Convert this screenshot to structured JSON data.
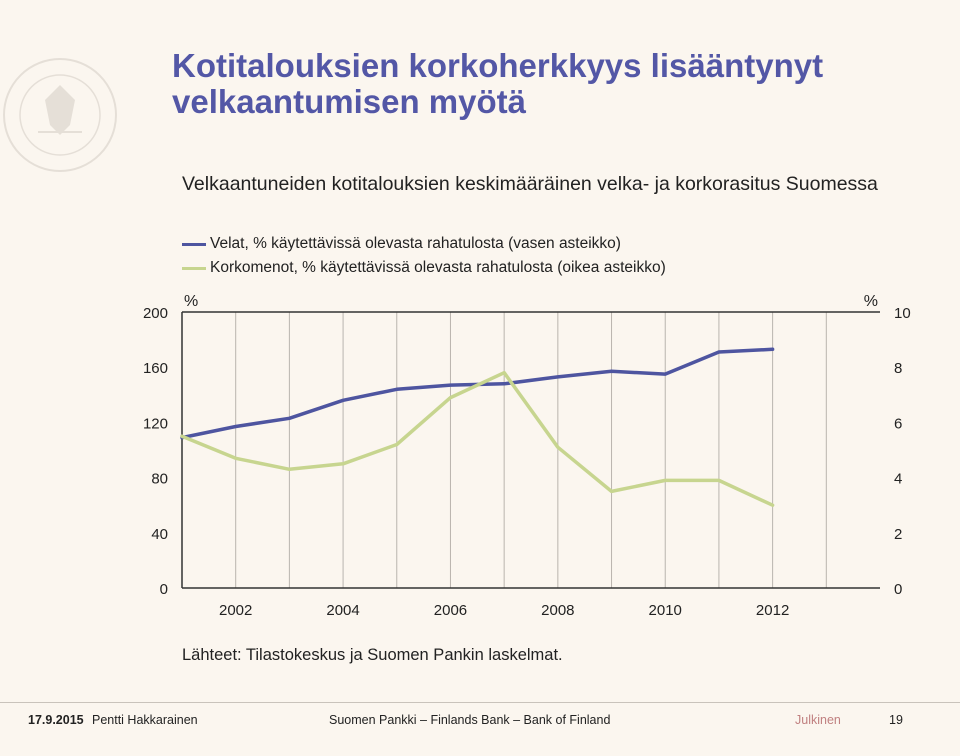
{
  "slide": {
    "title": "Kotitalouksien korkoherkkyys lisääntynyt velkaantumisen myötä",
    "subtitle": "Velkaantuneiden kotitalouksien keskimääräinen velka- ja korkorasitus Suomessa",
    "source": "Lähteet: Tilastokeskus ja Suomen Pankin laskelmat.",
    "seal_text": "SUOMEN PANKKI · FINLANDS BANK · EUROSYSTEEMI",
    "seal_year": "19 11"
  },
  "footer": {
    "date": "17.9.2015",
    "author": "Pentti Hakkarainen",
    "org": "Suomen Pankki – Finlands Bank – Bank of Finland",
    "classification": "Julkinen",
    "page": "19"
  },
  "colors": {
    "title": "#5357a6",
    "debt": "#4e55a0",
    "interest": "#c7d58f"
  },
  "chart_data": {
    "type": "line",
    "x": [
      2001,
      2002,
      2003,
      2004,
      2005,
      2006,
      2007,
      2008,
      2009,
      2010,
      2011,
      2012,
      2013
    ],
    "xticks": [
      "2002",
      "2004",
      "2006",
      "2008",
      "2010",
      "2012"
    ],
    "xtick_values": [
      2002,
      2004,
      2006,
      2008,
      2010,
      2012
    ],
    "xlim": [
      2001,
      2014
    ],
    "left_unit": "%",
    "right_unit": "%",
    "ylim_left": [
      0,
      200
    ],
    "ylim_right": [
      0,
      10
    ],
    "yticks_left": [
      "0",
      "40",
      "80",
      "120",
      "160",
      "200"
    ],
    "yticks_right": [
      "0",
      "2",
      "4",
      "6",
      "8",
      "10"
    ],
    "grid": "vertical",
    "legend_position": "top-left",
    "series": [
      {
        "name": "Velat, % käytettävissä olevasta rahatulosta (vasen asteikko)",
        "axis": "left",
        "color": "#4e55a0",
        "values": [
          109,
          117,
          123,
          136,
          144,
          147,
          148,
          153,
          157,
          155,
          171,
          173,
          null
        ]
      },
      {
        "name": "Korkomenot, % käytettävissä olevasta rahatulosta (oikea asteikko)",
        "axis": "right",
        "color": "#c7d58f",
        "values": [
          5.5,
          4.7,
          4.3,
          4.5,
          5.2,
          6.9,
          7.8,
          5.1,
          3.5,
          3.9,
          3.9,
          3.0,
          null
        ]
      }
    ]
  }
}
